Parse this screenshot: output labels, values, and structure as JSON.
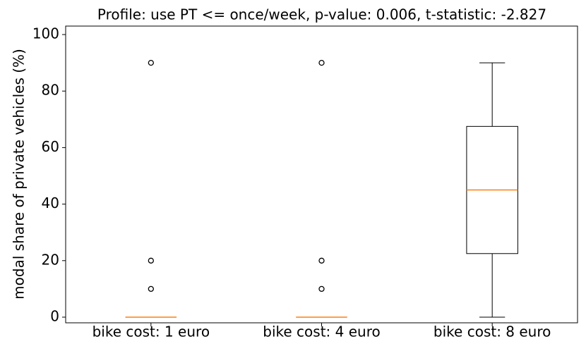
{
  "chart_data": {
    "type": "box",
    "title": "Profile: use PT  <= once/week, p-value: 0.006, t-statistic: -2.827",
    "y_label": "modal share of private vehicles (%)",
    "categories": [
      "bike cost: 1 euro",
      "bike cost: 4 euro",
      "bike cost: 8 euro"
    ],
    "boxes": [
      {
        "whislo": 0,
        "q1": 0,
        "med": 0,
        "q3": 0,
        "whishi": 0,
        "fliers": [
          10,
          20,
          90
        ]
      },
      {
        "whislo": 0,
        "q1": 0,
        "med": 0,
        "q3": 0,
        "whishi": 0,
        "fliers": [
          10,
          20,
          90
        ]
      },
      {
        "whislo": 0,
        "q1": 22.5,
        "med": 45,
        "q3": 67.5,
        "whishi": 90,
        "fliers": []
      }
    ],
    "color": "#000000",
    "median_color": "#ff7f0e",
    "ylim": [
      -2,
      103
    ],
    "yticks": [
      0,
      20,
      40,
      60,
      80,
      100
    ]
  }
}
